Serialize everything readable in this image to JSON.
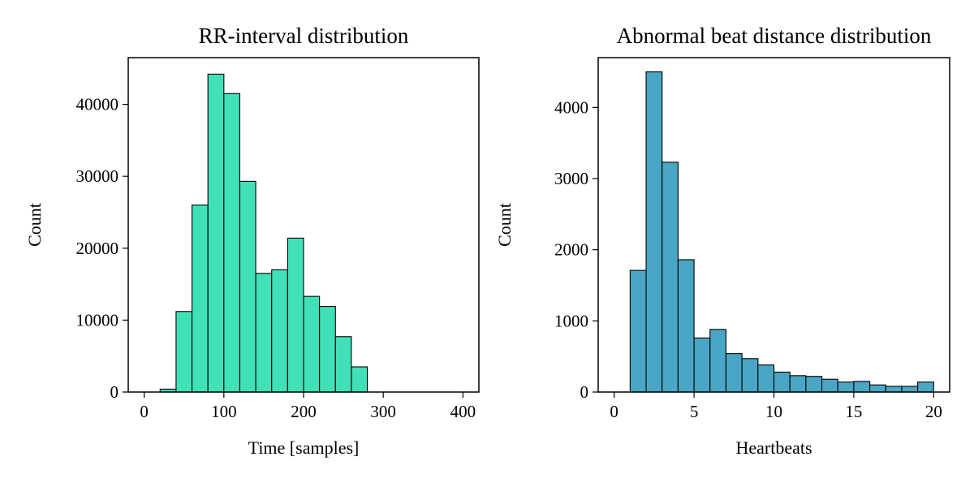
{
  "chart_data": [
    {
      "type": "bar",
      "title": "RR-interval distribution",
      "xlabel": "Time [samples]",
      "ylabel": "Count",
      "xlim": [
        -20,
        420
      ],
      "ylim": [
        0,
        46500
      ],
      "xticks": [
        0,
        100,
        200,
        300,
        400
      ],
      "yticks": [
        0,
        10000,
        20000,
        30000,
        40000
      ],
      "bin_edges": [
        0,
        20,
        40,
        60,
        80,
        100,
        120,
        140,
        160,
        180,
        200,
        220,
        240,
        260,
        280,
        300,
        320,
        340,
        360,
        380,
        400
      ],
      "values": [
        0,
        400,
        11200,
        26000,
        44200,
        41500,
        29300,
        16500,
        17000,
        21400,
        13300,
        11900,
        7700,
        3500,
        0,
        0,
        0,
        0,
        0,
        0
      ],
      "color": "#40e0b8",
      "grid": false
    },
    {
      "type": "bar",
      "title": "Abnormal beat distance distribution",
      "xlabel": "Heartbeats",
      "ylabel": "Count",
      "xlim": [
        -1,
        21
      ],
      "ylim": [
        0,
        4700
      ],
      "xticks": [
        0,
        5,
        10,
        15,
        20
      ],
      "yticks": [
        0,
        1000,
        2000,
        3000,
        4000
      ],
      "bin_edges": [
        1,
        2,
        3,
        4,
        5,
        6,
        7,
        8,
        9,
        10,
        11,
        12,
        13,
        14,
        15,
        16,
        17,
        18,
        19,
        20
      ],
      "values": [
        1710,
        4500,
        3230,
        1860,
        760,
        880,
        540,
        470,
        380,
        280,
        230,
        220,
        180,
        140,
        150,
        100,
        80,
        80,
        140
      ],
      "color": "#4aa6c4",
      "grid": false
    }
  ]
}
